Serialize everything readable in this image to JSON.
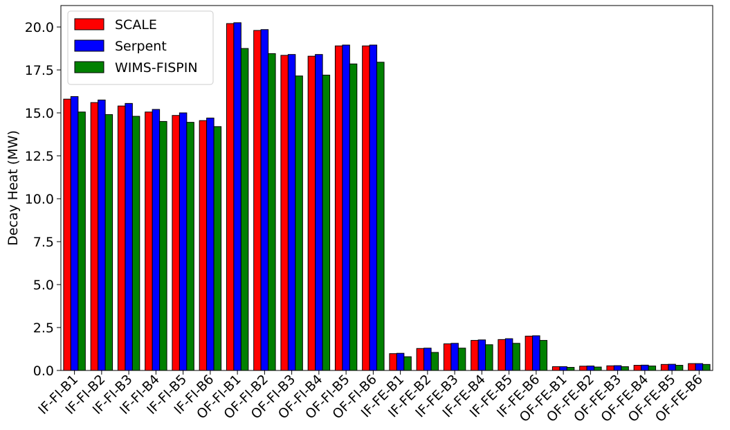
{
  "chart_data": {
    "type": "bar",
    "title": "",
    "xlabel": "",
    "ylabel": "Decay Heat (MW)",
    "ylim": [
      0,
      21.25
    ],
    "yticks": [
      "0.0",
      "2.5",
      "5.0",
      "7.5",
      "10.0",
      "12.5",
      "15.0",
      "17.5",
      "20.0"
    ],
    "grid": false,
    "legend_position": "top-left",
    "categories": [
      "IF-FI-B1",
      "IF-FI-B2",
      "IF-FI-B3",
      "IF-FI-B4",
      "IF-FI-B5",
      "IF-FI-B6",
      "OF-FI-B1",
      "OF-FI-B2",
      "OF-FI-B3",
      "OF-FI-B4",
      "OF-FI-B5",
      "OF-FI-B6",
      "IF-FE-B1",
      "IF-FE-B2",
      "IF-FE-B3",
      "IF-FE-B4",
      "IF-FE-B5",
      "IF-FE-B6",
      "OF-FE-B1",
      "OF-FE-B2",
      "OF-FE-B3",
      "OF-FE-B4",
      "OF-FE-B5",
      "OF-FE-B6"
    ],
    "series": [
      {
        "name": "SCALE",
        "color": "#ff0000",
        "values": [
          15.8,
          15.6,
          15.4,
          15.05,
          14.85,
          14.55,
          20.2,
          19.8,
          18.35,
          18.3,
          18.9,
          18.9,
          0.98,
          1.28,
          1.55,
          1.75,
          1.8,
          2.0,
          0.22,
          0.25,
          0.27,
          0.3,
          0.35,
          0.4
        ]
      },
      {
        "name": "Serpent",
        "color": "#0000ff",
        "values": [
          15.95,
          15.75,
          15.55,
          15.2,
          15.0,
          14.7,
          20.25,
          19.85,
          18.4,
          18.4,
          18.95,
          18.95,
          1.0,
          1.3,
          1.58,
          1.78,
          1.85,
          2.02,
          0.22,
          0.26,
          0.28,
          0.31,
          0.36,
          0.4
        ]
      },
      {
        "name": "WIMS-FISPIN",
        "color": "#008000",
        "values": [
          15.05,
          14.9,
          14.8,
          14.5,
          14.45,
          14.2,
          18.75,
          18.45,
          17.15,
          17.2,
          17.85,
          17.95,
          0.8,
          1.05,
          1.3,
          1.5,
          1.58,
          1.75,
          0.18,
          0.2,
          0.22,
          0.26,
          0.3,
          0.35
        ]
      }
    ]
  }
}
